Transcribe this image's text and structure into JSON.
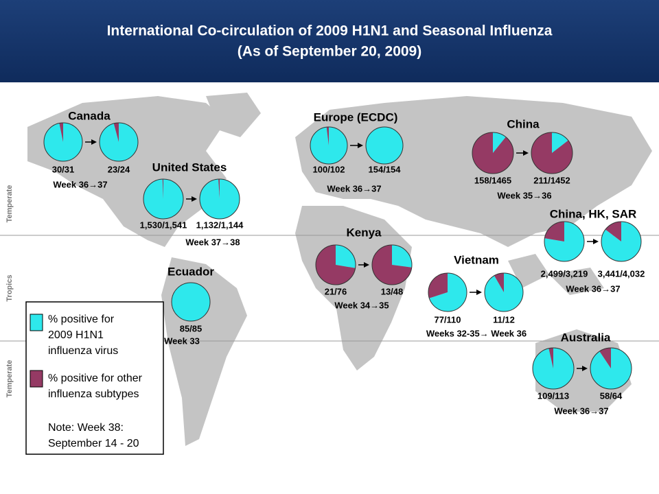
{
  "header": {
    "title_lines": [
      "International Co-circulation of 2009 H1N1 and Seasonal Influenza",
      "(As of September 20, 2009)"
    ]
  },
  "colors": {
    "h1n1": "#2ee8ec",
    "other": "#953a64"
  },
  "zones": [
    "Temperate",
    "Tropics",
    "Temperate"
  ],
  "legend": {
    "h1n1_lines": [
      "% positive for",
      "2009 H1N1",
      "influenza virus"
    ],
    "other_lines": [
      "% positive for other",
      "influenza subtypes"
    ],
    "note_lines": [
      "Note: Week 38:",
      "September 14 - 20"
    ]
  },
  "regions": [
    {
      "name": "Canada",
      "week": "Week 36→37",
      "pies": [
        {
          "label": "30/31",
          "h1n1": 30,
          "total": 31
        },
        {
          "label": "23/24",
          "h1n1": 23,
          "total": 24
        }
      ]
    },
    {
      "name": "Europe (ECDC)",
      "week": "Week 36→37",
      "pies": [
        {
          "label": "100/102",
          "h1n1": 100,
          "total": 102
        },
        {
          "label": "154/154",
          "h1n1": 154,
          "total": 154
        }
      ]
    },
    {
      "name": "China",
      "week": "Week 35→36",
      "pies": [
        {
          "label": "158/1465",
          "h1n1": 158,
          "total": 1465
        },
        {
          "label": "211/1452",
          "h1n1": 211,
          "total": 1452
        }
      ]
    },
    {
      "name": "United States",
      "week": "Week 37→38",
      "pies": [
        {
          "label": "1,530/1,541",
          "h1n1": 1530,
          "total": 1541
        },
        {
          "label": "1,132/1,144",
          "h1n1": 1132,
          "total": 1144
        }
      ]
    },
    {
      "name": "Kenya",
      "week": "Week 34→35",
      "pies": [
        {
          "label": "21/76",
          "h1n1": 21,
          "total": 76
        },
        {
          "label": "13/48",
          "h1n1": 13,
          "total": 48
        }
      ]
    },
    {
      "name": "China, HK, SAR",
      "week": "Week 36→37",
      "pies": [
        {
          "label": "2,499/3,219",
          "h1n1": 2499,
          "total": 3219
        },
        {
          "label": "3,441/4,032",
          "h1n1": 3441,
          "total": 4032
        }
      ]
    },
    {
      "name": "Ecuador",
      "week": "Week 33",
      "pies": [
        {
          "label": "85/85",
          "h1n1": 85,
          "total": 85
        }
      ]
    },
    {
      "name": "Vietnam",
      "week": "Weeks 32-35→ Week 36",
      "pies": [
        {
          "label": "77/110",
          "h1n1": 77,
          "total": 110
        },
        {
          "label": "11/12",
          "h1n1": 11,
          "total": 12
        }
      ]
    },
    {
      "name": "Australia",
      "week": "Week 36→37",
      "pies": [
        {
          "label": "109/113",
          "h1n1": 109,
          "total": 113
        },
        {
          "label": "58/64",
          "h1n1": 58,
          "total": 64
        }
      ]
    }
  ]
}
